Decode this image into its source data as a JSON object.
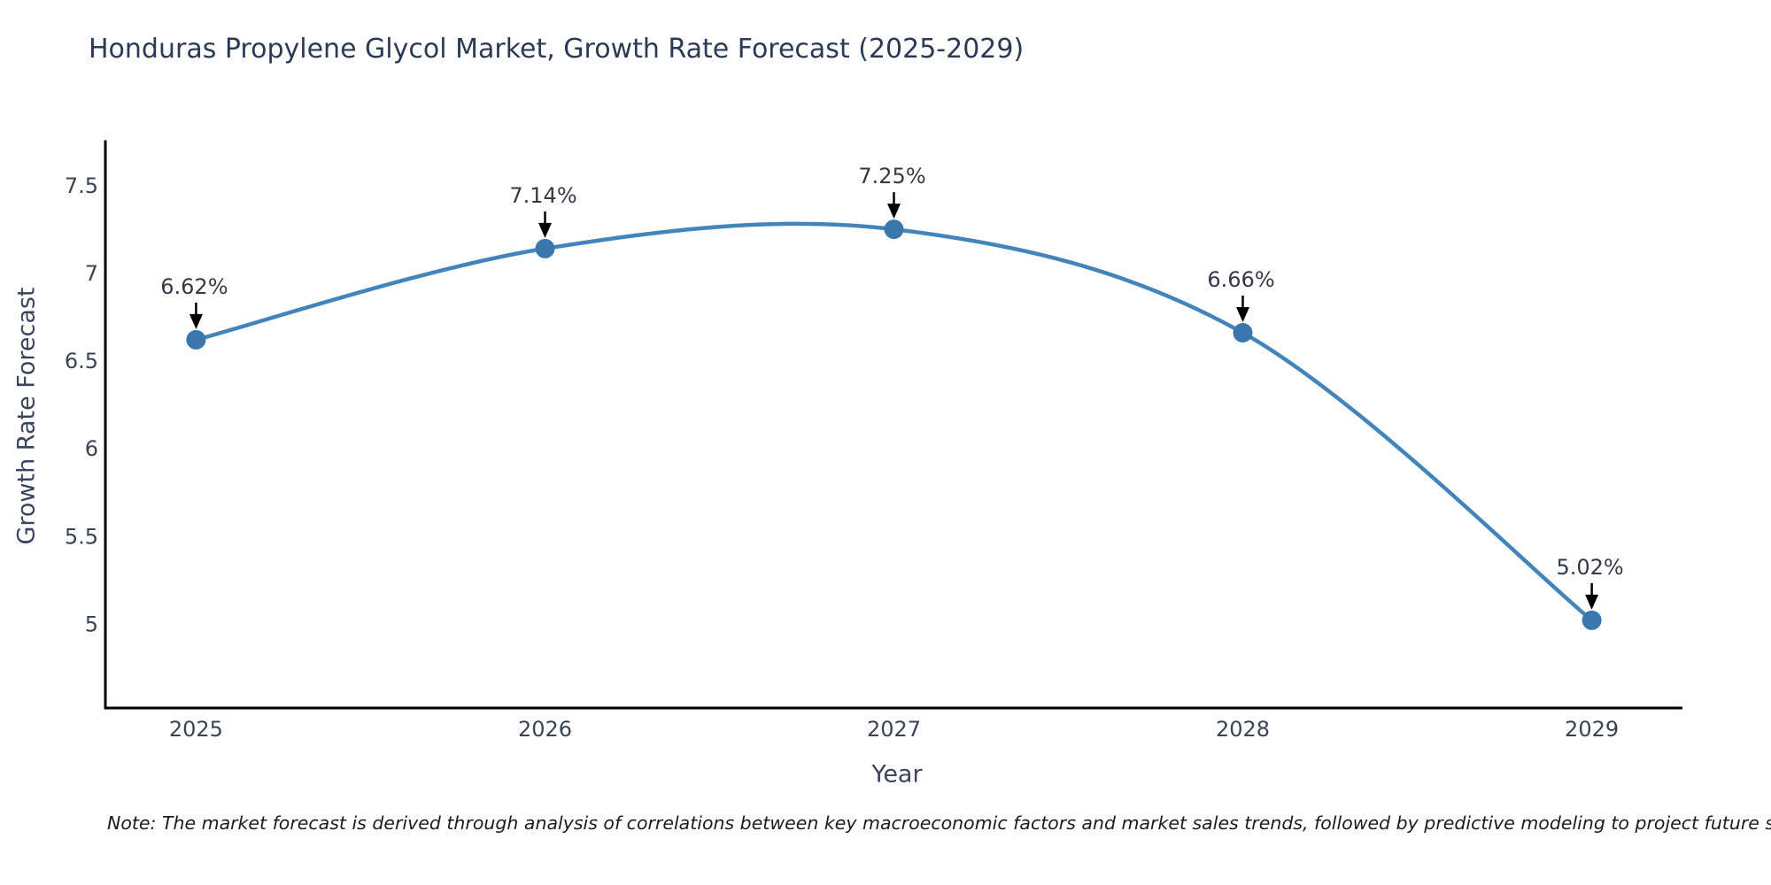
{
  "title": "Honduras Propylene Glycol Market, Growth Rate Forecast (2025-2029)",
  "note": "Note: The market forecast is derived through analysis of correlations between key macroeconomic factors and market sales trends, followed by predictive modeling to project future sales",
  "chart_data": {
    "type": "line",
    "title": "Honduras Propylene Glycol Market, Growth Rate Forecast (2025-2029)",
    "x": [
      2025,
      2026,
      2027,
      2028,
      2029
    ],
    "categories": [
      "2025",
      "2026",
      "2027",
      "2028",
      "2029"
    ],
    "series": [
      {
        "name": "Growth Rate Forecast",
        "values": [
          6.62,
          7.14,
          7.25,
          6.66,
          5.02
        ]
      }
    ],
    "point_labels": [
      "6.62%",
      "7.14%",
      "7.25%",
      "6.66%",
      "5.02%"
    ],
    "xlabel": "Year",
    "ylabel": "Growth Rate Forecast",
    "yticks": [
      5,
      5.5,
      6,
      6.5,
      7,
      7.5
    ],
    "ytick_labels": [
      "5",
      "5.5",
      "6",
      "6.5",
      "7",
      "7.5"
    ],
    "ylim": [
      4.52,
      7.75
    ],
    "xlim": [
      2024.74,
      2029.26
    ],
    "grid": false,
    "legend": "none",
    "colors": {
      "line": "#4384bb",
      "marker": "#3a77ad",
      "spine": "#000000",
      "tick_text": "#3b4453",
      "annotation_text": "#343a46",
      "annotation_arrow": "#000000",
      "title_text": "#2b3a55",
      "background": "#ffffff"
    }
  }
}
